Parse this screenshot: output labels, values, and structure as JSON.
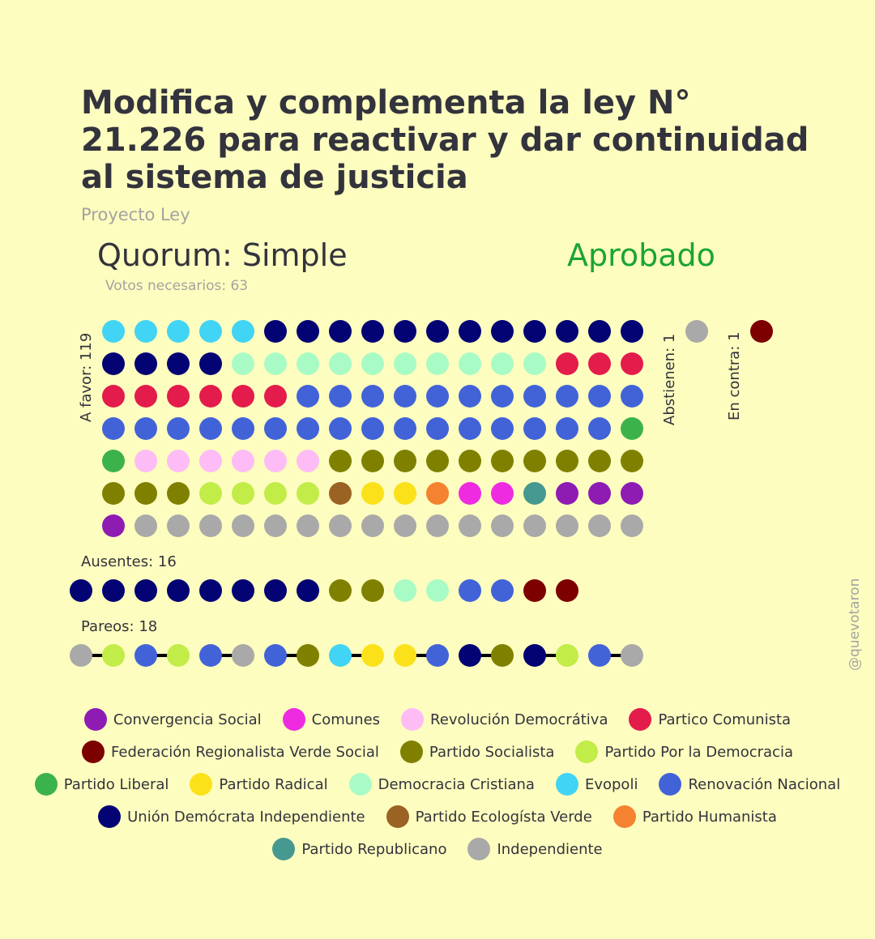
{
  "title": "Modifica y complementa la ley N° 21.226 para reactivar y dar continuidad al sistema de justicia",
  "subtitle": "Proyecto Ley",
  "quorum": "Quorum: Simple",
  "result": "Aprobado",
  "votes_needed": "Votos necesarios: 63",
  "labels": {
    "favor": "A favor: 119",
    "abstain": "Abstienen: 1",
    "against": "En contra: 1",
    "absent": "Ausentes: 16",
    "pairs": "Pareos: 18"
  },
  "credit": "@quevotaron",
  "parties": [
    {
      "key": "CS",
      "name": "Convergencia Social",
      "color": "#8e1cb3"
    },
    {
      "key": "COM",
      "name": "Comunes",
      "color": "#ee2be1"
    },
    {
      "key": "RD",
      "name": "Revolución Democrátiva",
      "color": "#fdbcf6"
    },
    {
      "key": "PC",
      "name": "Partico Comunista",
      "color": "#e31c4c"
    },
    {
      "key": "FRVS",
      "name": "Federación Regionalista Verde Social",
      "color": "#7d0000"
    },
    {
      "key": "PS",
      "name": "Partido Socialista",
      "color": "#808000"
    },
    {
      "key": "PPD",
      "name": "Partido Por la Democracia",
      "color": "#c2ec48"
    },
    {
      "key": "PL",
      "name": "Partido Liberal",
      "color": "#3cb34a"
    },
    {
      "key": "PR",
      "name": "Partido Radical",
      "color": "#fbe11a"
    },
    {
      "key": "DC",
      "name": "Democracia Cristiana",
      "color": "#a9fbc5"
    },
    {
      "key": "EVO",
      "name": "Evopoli",
      "color": "#42d4f4"
    },
    {
      "key": "RN",
      "name": "Renovación Nacional",
      "color": "#4263d8"
    },
    {
      "key": "UDI",
      "name": "Unión Demócrata Independiente",
      "color": "#030374"
    },
    {
      "key": "PEV",
      "name": "Partido Ecologísta Verde",
      "color": "#9a6223"
    },
    {
      "key": "PH",
      "name": "Partido Humanista",
      "color": "#f58231"
    },
    {
      "key": "REP",
      "name": "Partido Republicano",
      "color": "#469990"
    },
    {
      "key": "IND",
      "name": "Independiente",
      "color": "#a9a9a9"
    }
  ],
  "votes": {
    "favor": [
      "EVO",
      "EVO",
      "EVO",
      "EVO",
      "EVO",
      "UDI",
      "UDI",
      "UDI",
      "UDI",
      "UDI",
      "UDI",
      "UDI",
      "UDI",
      "UDI",
      "UDI",
      "UDI",
      "UDI",
      "UDI",
      "UDI",
      "UDI",
      "UDI",
      "DC",
      "DC",
      "DC",
      "DC",
      "DC",
      "DC",
      "DC",
      "DC",
      "DC",
      "DC",
      "PC",
      "PC",
      "PC",
      "PC",
      "PC",
      "PC",
      "PC",
      "PC",
      "PC",
      "RN",
      "RN",
      "RN",
      "RN",
      "RN",
      "RN",
      "RN",
      "RN",
      "RN",
      "RN",
      "RN",
      "RN",
      "RN",
      "RN",
      "RN",
      "RN",
      "RN",
      "RN",
      "RN",
      "RN",
      "RN",
      "RN",
      "RN",
      "RN",
      "RN",
      "RN",
      "RN",
      "PL",
      "PL",
      "RD",
      "RD",
      "RD",
      "RD",
      "RD",
      "RD",
      "PS",
      "PS",
      "PS",
      "PS",
      "PS",
      "PS",
      "PS",
      "PS",
      "PS",
      "PS",
      "PS",
      "PS",
      "PS",
      "PPD",
      "PPD",
      "PPD",
      "PPD",
      "PEV",
      "PR",
      "PR",
      "PH",
      "COM",
      "COM",
      "REP",
      "CS",
      "CS",
      "CS",
      "CS",
      "IND",
      "IND",
      "IND",
      "IND",
      "IND",
      "IND",
      "IND",
      "IND",
      "IND",
      "IND",
      "IND",
      "IND",
      "IND",
      "IND",
      "IND",
      "IND"
    ],
    "abstain": [
      "IND"
    ],
    "against": [
      "FRVS"
    ],
    "absent": [
      "UDI",
      "UDI",
      "UDI",
      "UDI",
      "UDI",
      "UDI",
      "UDI",
      "UDI",
      "PS",
      "PS",
      "DC",
      "DC",
      "RN",
      "RN",
      "FRVS",
      "FRVS"
    ],
    "pairs": [
      "IND",
      "PPD",
      "RN",
      "PPD",
      "RN",
      "IND",
      "RN",
      "PS",
      "EVO",
      "PR",
      "PR",
      "RN",
      "UDI",
      "PS",
      "UDI",
      "PPD",
      "RN",
      "IND"
    ]
  }
}
